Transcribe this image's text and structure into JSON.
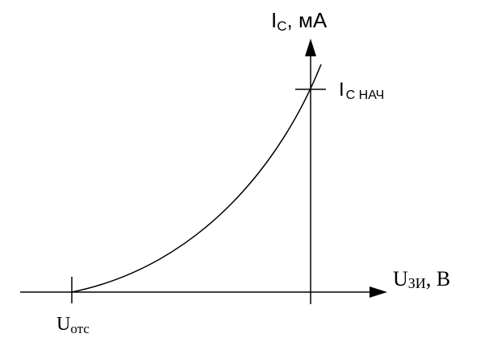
{
  "y_axis_label": {
    "main": "I",
    "sub": "С",
    "suffix": ", мА"
  },
  "x_axis_label": {
    "main": "U",
    "sub": "ЗИ",
    "suffix": ", В"
  },
  "ic_start_label": {
    "main": "I",
    "sub": "С НАЧ"
  },
  "cutoff_label": {
    "main": "U",
    "sub": "отс"
  },
  "colors": {
    "stroke": "#000000",
    "background": "#ffffff"
  }
}
